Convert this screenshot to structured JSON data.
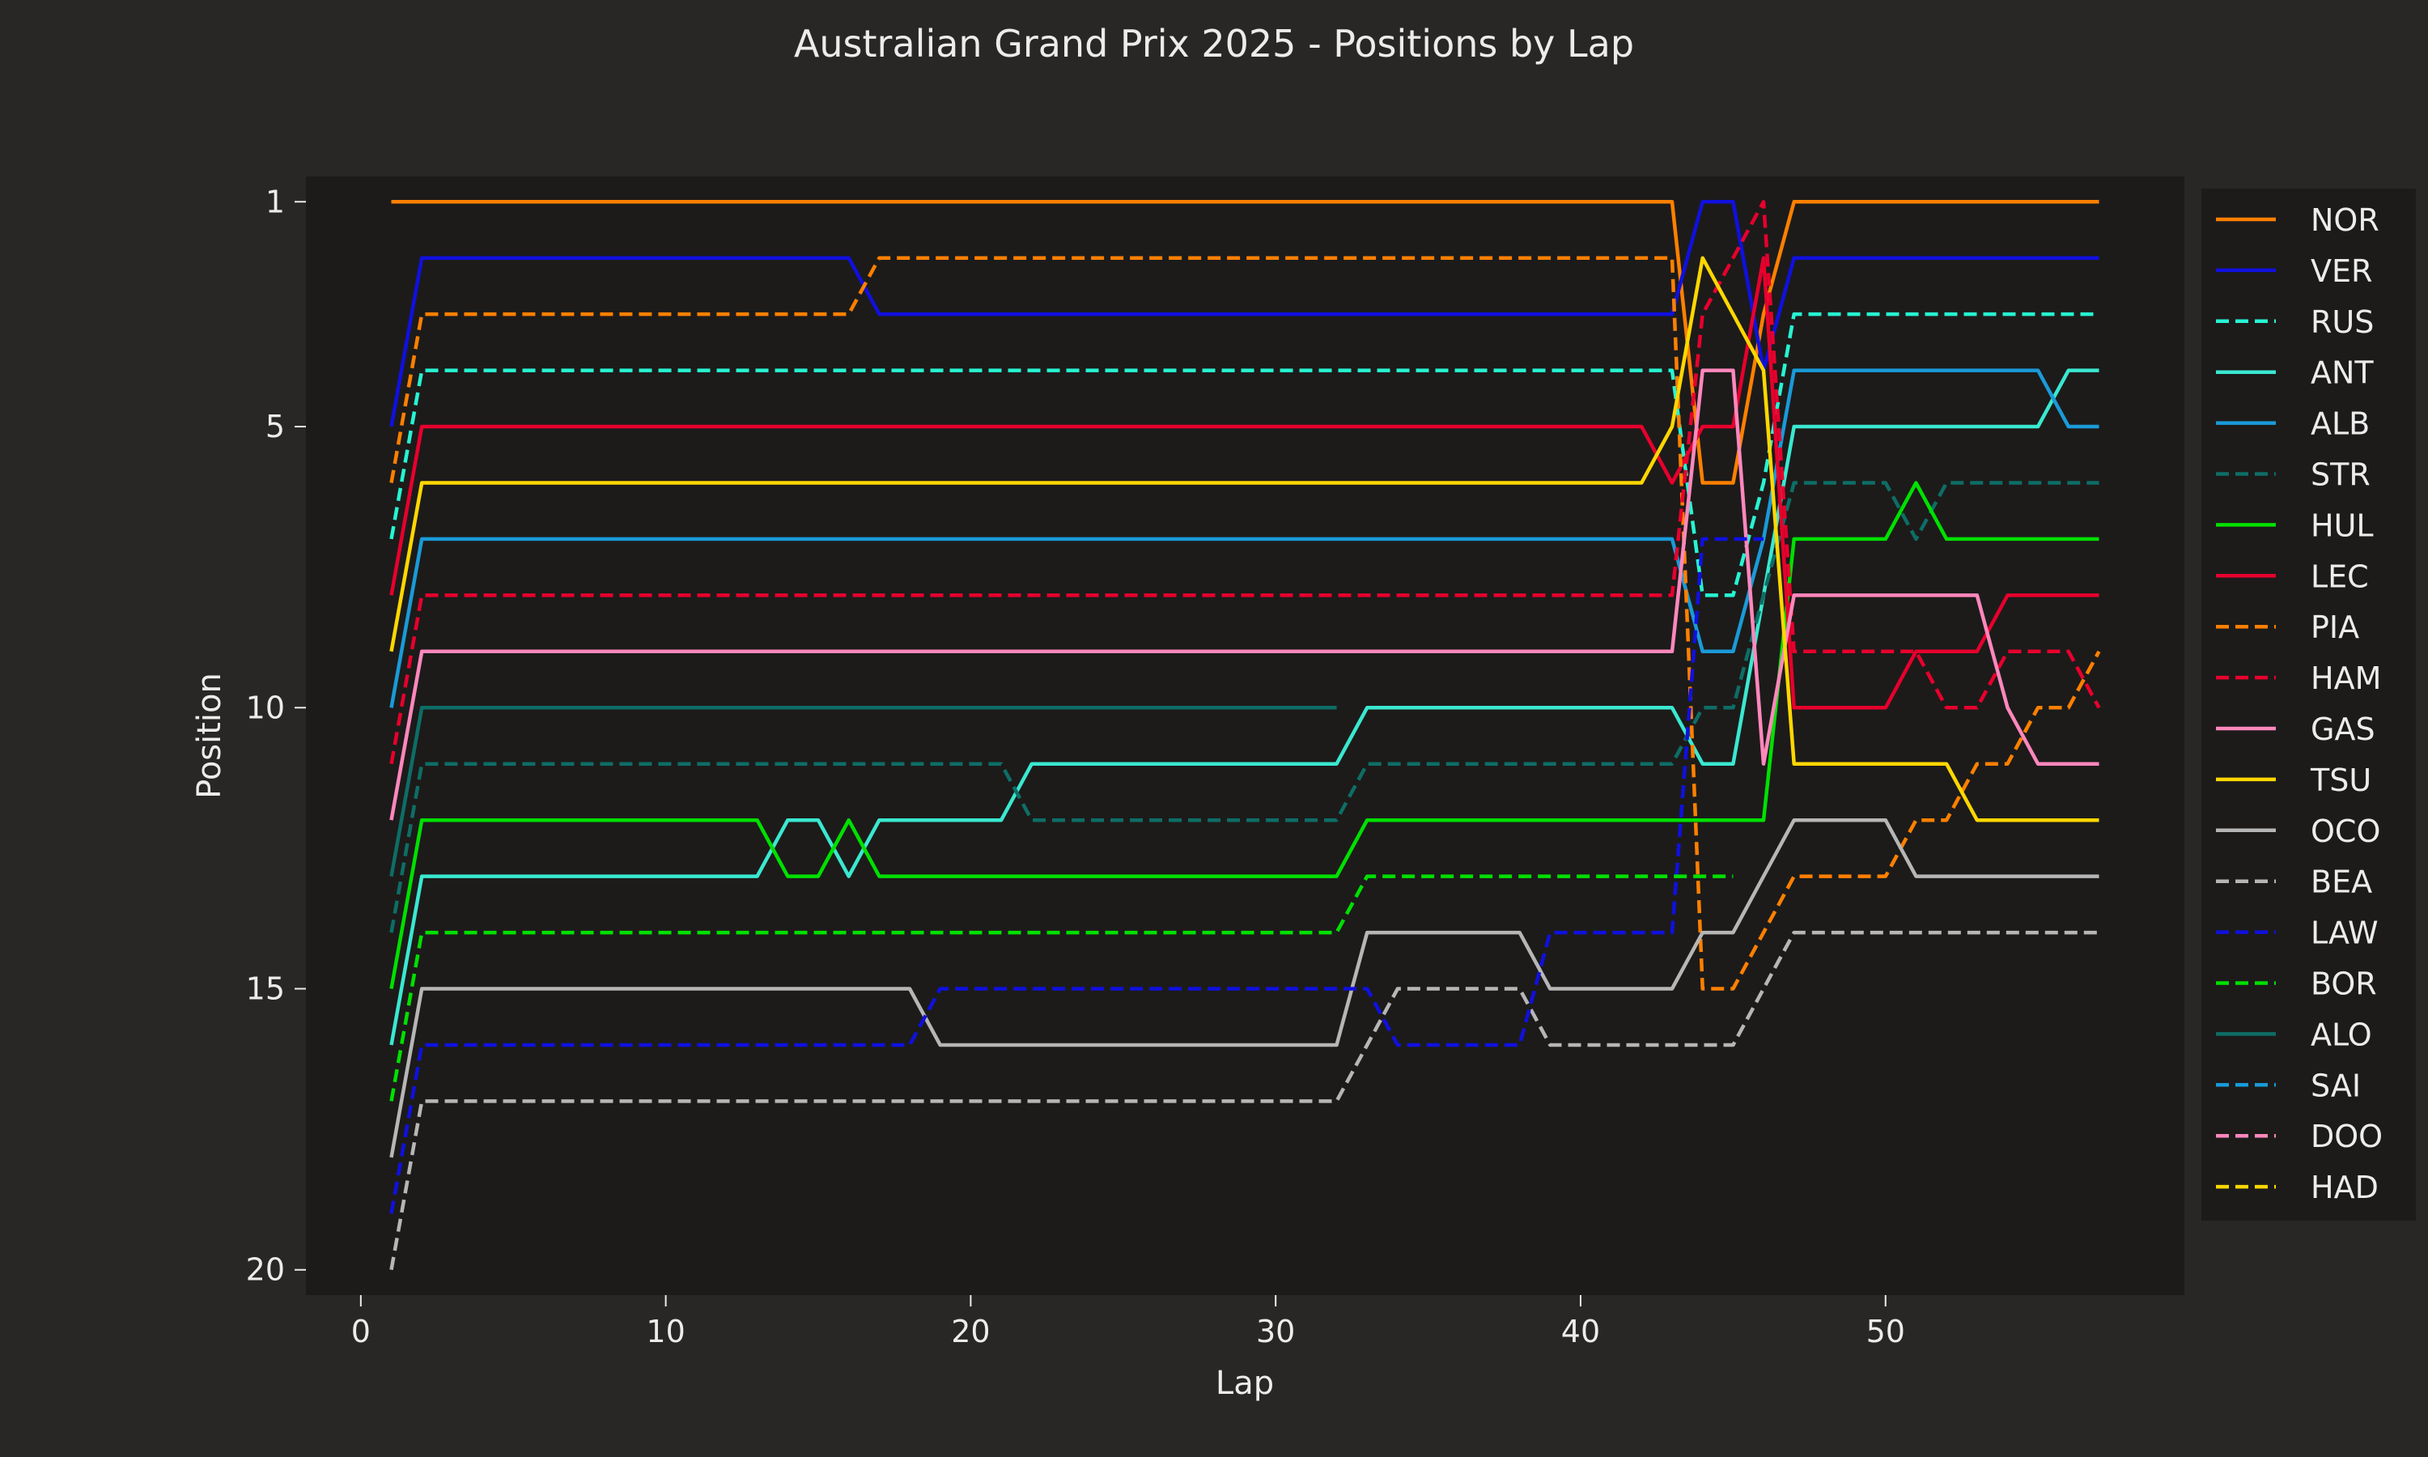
{
  "chart_data": {
    "type": "line",
    "title": "Australian Grand Prix 2025 - Positions by Lap",
    "xlabel": "Lap",
    "ylabel": "Position",
    "xlim": [
      -1.8,
      59.8
    ],
    "ylim": [
      20.45,
      0.55
    ],
    "y_inverted": true,
    "xticks": [
      0,
      10,
      20,
      30,
      40,
      50
    ],
    "yticks": [
      1,
      5,
      10,
      15,
      20
    ],
    "grid": false,
    "legend_position": "right",
    "background": "#292726",
    "plot_background": "#1c1b1a",
    "series": [
      {
        "name": "NOR",
        "color": "#ff8000",
        "dash": false,
        "points": [
          [
            1,
            1
          ],
          [
            43,
            1
          ],
          [
            44,
            6
          ],
          [
            45,
            6
          ],
          [
            46,
            3
          ],
          [
            47,
            1
          ],
          [
            57,
            1
          ]
        ]
      },
      {
        "name": "VER",
        "color": "#1010e0",
        "dash": false,
        "points": [
          [
            1,
            5
          ],
          [
            2,
            2
          ],
          [
            16,
            2
          ],
          [
            17,
            3
          ],
          [
            43,
            3
          ],
          [
            44,
            1
          ],
          [
            45,
            1
          ],
          [
            46,
            4
          ],
          [
            47,
            2
          ],
          [
            57,
            2
          ]
        ]
      },
      {
        "name": "RUS",
        "color": "#27f4d2",
        "dash": true,
        "points": [
          [
            1,
            7
          ],
          [
            2,
            4
          ],
          [
            43,
            4
          ],
          [
            44,
            8
          ],
          [
            45,
            8
          ],
          [
            46,
            6
          ],
          [
            47,
            3
          ],
          [
            57,
            3
          ]
        ]
      },
      {
        "name": "ANT",
        "color": "#3ae8d0",
        "dash": false,
        "points": [
          [
            1,
            16
          ],
          [
            2,
            13
          ],
          [
            13,
            13
          ],
          [
            14,
            12
          ],
          [
            15,
            12
          ],
          [
            16,
            13
          ],
          [
            17,
            12
          ],
          [
            21,
            12
          ],
          [
            22,
            11
          ],
          [
            32,
            11
          ],
          [
            33,
            10
          ],
          [
            43,
            10
          ],
          [
            44,
            11
          ],
          [
            45,
            11
          ],
          [
            46,
            8
          ],
          [
            47,
            5
          ],
          [
            55,
            5
          ],
          [
            56,
            4
          ],
          [
            57,
            4
          ]
        ]
      },
      {
        "name": "ALB",
        "color": "#1a9ad8",
        "dash": false,
        "points": [
          [
            1,
            10
          ],
          [
            2,
            7
          ],
          [
            43,
            7
          ],
          [
            44,
            9
          ],
          [
            45,
            9
          ],
          [
            46,
            7
          ],
          [
            47,
            4
          ],
          [
            55,
            4
          ],
          [
            56,
            5
          ],
          [
            57,
            5
          ]
        ]
      },
      {
        "name": "STR",
        "color": "#0d6e66",
        "dash": true,
        "points": [
          [
            1,
            14
          ],
          [
            2,
            11
          ],
          [
            21,
            11
          ],
          [
            22,
            12
          ],
          [
            32,
            12
          ],
          [
            33,
            11
          ],
          [
            43,
            11
          ],
          [
            44,
            10
          ],
          [
            45,
            10
          ],
          [
            46,
            8
          ],
          [
            47,
            6
          ],
          [
            50,
            6
          ],
          [
            51,
            7
          ],
          [
            52,
            6
          ],
          [
            57,
            6
          ]
        ]
      },
      {
        "name": "HUL",
        "color": "#00e000",
        "dash": false,
        "points": [
          [
            1,
            15
          ],
          [
            2,
            12
          ],
          [
            13,
            12
          ],
          [
            14,
            13
          ],
          [
            15,
            13
          ],
          [
            16,
            12
          ],
          [
            17,
            13
          ],
          [
            32,
            13
          ],
          [
            33,
            12
          ],
          [
            46,
            12
          ],
          [
            47,
            7
          ],
          [
            50,
            7
          ],
          [
            51,
            6
          ],
          [
            52,
            7
          ],
          [
            57,
            7
          ]
        ]
      },
      {
        "name": "LEC",
        "color": "#e8002d",
        "dash": false,
        "points": [
          [
            1,
            8
          ],
          [
            2,
            5
          ],
          [
            42,
            5
          ],
          [
            43,
            6
          ],
          [
            44,
            5
          ],
          [
            45,
            5
          ],
          [
            46,
            2
          ],
          [
            47,
            10
          ],
          [
            50,
            10
          ],
          [
            51,
            9
          ],
          [
            52,
            9
          ],
          [
            53,
            9
          ],
          [
            54,
            8
          ],
          [
            57,
            8
          ]
        ]
      },
      {
        "name": "PIA",
        "color": "#ff8000",
        "dash": true,
        "points": [
          [
            1,
            6
          ],
          [
            2,
            3
          ],
          [
            16,
            3
          ],
          [
            17,
            2
          ],
          [
            43,
            2
          ],
          [
            44,
            15
          ],
          [
            45,
            15
          ],
          [
            46,
            14
          ],
          [
            47,
            13
          ],
          [
            50,
            13
          ],
          [
            51,
            12
          ],
          [
            52,
            12
          ],
          [
            53,
            11
          ],
          [
            54,
            11
          ],
          [
            55,
            10
          ],
          [
            56,
            10
          ],
          [
            57,
            9
          ]
        ]
      },
      {
        "name": "HAM",
        "color": "#e8002d",
        "dash": true,
        "points": [
          [
            1,
            11
          ],
          [
            2,
            8
          ],
          [
            43,
            8
          ],
          [
            44,
            3
          ],
          [
            45,
            2
          ],
          [
            46,
            1
          ],
          [
            47,
            9
          ],
          [
            50,
            9
          ],
          [
            51,
            9
          ],
          [
            52,
            10
          ],
          [
            53,
            10
          ],
          [
            54,
            9
          ],
          [
            56,
            9
          ],
          [
            57,
            10
          ]
        ]
      },
      {
        "name": "GAS",
        "color": "#ff87bc",
        "dash": false,
        "points": [
          [
            1,
            12
          ],
          [
            2,
            9
          ],
          [
            43,
            9
          ],
          [
            44,
            4
          ],
          [
            45,
            4
          ],
          [
            46,
            11
          ],
          [
            47,
            8
          ],
          [
            53,
            8
          ],
          [
            54,
            10
          ],
          [
            55,
            11
          ],
          [
            57,
            11
          ]
        ]
      },
      {
        "name": "TSU",
        "color": "#ffd700",
        "dash": false,
        "points": [
          [
            1,
            9
          ],
          [
            2,
            6
          ],
          [
            42,
            6
          ],
          [
            43,
            5
          ],
          [
            44,
            2
          ],
          [
            45,
            3
          ],
          [
            46,
            4
          ],
          [
            47,
            11
          ],
          [
            52,
            11
          ],
          [
            53,
            12
          ],
          [
            57,
            12
          ]
        ]
      },
      {
        "name": "OCO",
        "color": "#b6b6b6",
        "dash": false,
        "points": [
          [
            1,
            18
          ],
          [
            2,
            15
          ],
          [
            18,
            15
          ],
          [
            19,
            16
          ],
          [
            32,
            16
          ],
          [
            33,
            14
          ],
          [
            38,
            14
          ],
          [
            39,
            15
          ],
          [
            43,
            15
          ],
          [
            44,
            14
          ],
          [
            45,
            14
          ],
          [
            46,
            13
          ],
          [
            47,
            12
          ],
          [
            50,
            12
          ],
          [
            51,
            13
          ],
          [
            57,
            13
          ]
        ]
      },
      {
        "name": "BEA",
        "color": "#b6b6b6",
        "dash": true,
        "points": [
          [
            1,
            20
          ],
          [
            2,
            17
          ],
          [
            32,
            17
          ],
          [
            33,
            16
          ],
          [
            34,
            15
          ],
          [
            38,
            15
          ],
          [
            39,
            16
          ],
          [
            45,
            16
          ],
          [
            46,
            15
          ],
          [
            47,
            14
          ],
          [
            57,
            14
          ]
        ]
      },
      {
        "name": "LAW",
        "color": "#1010e0",
        "dash": true,
        "points": [
          [
            1,
            19
          ],
          [
            2,
            16
          ],
          [
            18,
            16
          ],
          [
            19,
            15
          ],
          [
            33,
            15
          ],
          [
            34,
            16
          ],
          [
            38,
            16
          ],
          [
            39,
            14
          ],
          [
            43,
            14
          ],
          [
            44,
            7
          ],
          [
            45,
            7
          ],
          [
            46,
            7
          ]
        ]
      },
      {
        "name": "BOR",
        "color": "#00e000",
        "dash": true,
        "points": [
          [
            1,
            17
          ],
          [
            2,
            14
          ],
          [
            32,
            14
          ],
          [
            33,
            13
          ],
          [
            45,
            13
          ]
        ]
      },
      {
        "name": "ALO",
        "color": "#0d6e66",
        "dash": false,
        "points": [
          [
            1,
            13
          ],
          [
            2,
            10
          ],
          [
            32,
            10
          ]
        ]
      },
      {
        "name": "SAI",
        "color": "#1a9ad8",
        "dash": true,
        "points": []
      },
      {
        "name": "DOO",
        "color": "#ff87bc",
        "dash": true,
        "points": []
      },
      {
        "name": "HAD",
        "color": "#ffd700",
        "dash": true,
        "points": []
      }
    ]
  }
}
